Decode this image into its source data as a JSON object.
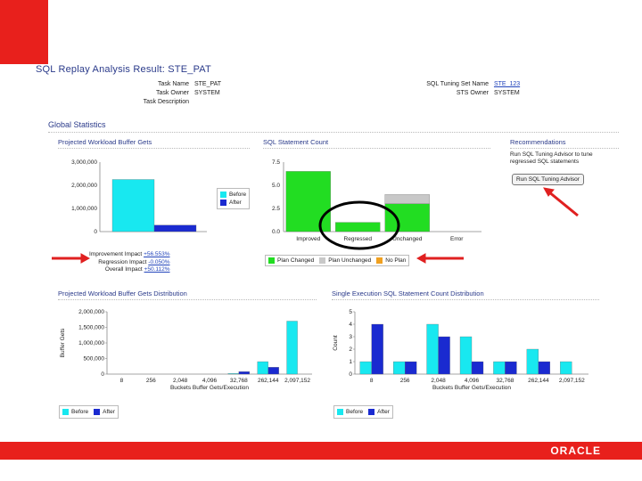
{
  "page": {
    "title": "SQL Replay Analysis Result: STE_PAT"
  },
  "task_info": {
    "task_name_label": "Task Name",
    "task_name": "STE_PAT",
    "task_owner_label": "Task Owner",
    "task_owner": "SYSTEM",
    "task_desc_label": "Task Description",
    "task_desc": "",
    "sts_label": "SQL Tuning Set Name",
    "sts_name": "STE_123",
    "sts_owner_label": "STS Owner",
    "sts_owner": "SYSTEM"
  },
  "global_stats": {
    "heading": "Global Statistics"
  },
  "colors": {
    "before": "#18e8f0",
    "after": "#1a2ad0",
    "changed": "#22dd22",
    "unchanged": "#c8c8c8",
    "noplan": "#f0a020",
    "accent": "#e8201c"
  },
  "panel1": {
    "title": "Projected Workload Buffer Gets",
    "chart_data": {
      "type": "bar",
      "categories": [
        ""
      ],
      "series": [
        {
          "name": "Before",
          "values": [
            2250000
          ]
        },
        {
          "name": "After",
          "values": [
            280000
          ]
        }
      ],
      "ylim": [
        0,
        3000000
      ],
      "yticks": [
        0,
        1000000,
        2000000,
        3000000
      ],
      "ytick_labels": [
        "0",
        "1,000,000",
        "2,000,000",
        "3,000,000"
      ]
    },
    "legend": {
      "before": "Before",
      "after": "After"
    },
    "impacts": [
      {
        "label": "Improvement Impact",
        "value": "+56.553%"
      },
      {
        "label": "Regression Impact",
        "value": "-0.050%"
      },
      {
        "label": "Overall Impact",
        "value": "+50.112%"
      }
    ]
  },
  "panel2": {
    "title": "SQL Statement Count",
    "chart_data": {
      "type": "bar",
      "stacked": true,
      "categories": [
        "Improved",
        "Regressed",
        "Unchanged",
        "Error"
      ],
      "series": [
        {
          "name": "Plan Changed",
          "values": [
            6.5,
            1,
            3,
            0
          ]
        },
        {
          "name": "Plan Unchanged",
          "values": [
            0,
            0,
            1,
            0
          ]
        },
        {
          "name": "No Plan",
          "values": [
            0,
            0,
            0,
            0
          ]
        }
      ],
      "ylim": [
        0,
        7.5
      ],
      "yticks": [
        0,
        2.5,
        5,
        7.5
      ],
      "ytick_labels": [
        "0.0",
        "2.5",
        "5.0",
        "7.5"
      ]
    },
    "legend": {
      "changed": "Plan Changed",
      "unchanged": "Plan Unchanged",
      "noplan": "No Plan"
    }
  },
  "recommendations": {
    "title": "Recommendations",
    "text": "Run SQL Tuning Advisor to tune regressed SQL statements",
    "button": "Run SQL Tuning Advisor"
  },
  "panel3": {
    "title": "Projected Workload Buffer Gets Distribution",
    "chart_data": {
      "type": "bar",
      "categories": [
        "8",
        "256",
        "2,048",
        "4,096",
        "32,768",
        "262,144",
        "2,097,152"
      ],
      "series": [
        {
          "name": "Before",
          "values": [
            0,
            0,
            0,
            0,
            20000,
            400000,
            1700000
          ]
        },
        {
          "name": "After",
          "values": [
            0,
            0,
            0,
            0,
            80000,
            220000,
            0
          ]
        }
      ],
      "ylim": [
        0,
        2000000
      ],
      "yticks": [
        0,
        500000,
        1000000,
        1500000,
        2000000
      ],
      "ytick_labels": [
        "0",
        "500,000",
        "1,000,000",
        "1,500,000",
        "2,000,000"
      ],
      "ylabel": "Buffer Gets",
      "xlabel": "Buckets   Buffer Gets/Execution"
    },
    "legend": {
      "before": "Before",
      "after": "After"
    }
  },
  "panel4": {
    "title": "Single Execution SQL Statement Count Distribution",
    "chart_data": {
      "type": "bar",
      "categories": [
        "8",
        "256",
        "2,048",
        "4,096",
        "32,768",
        "262,144",
        "2,097,152"
      ],
      "series": [
        {
          "name": "Before",
          "values": [
            1,
            1,
            4,
            3,
            1,
            2,
            1
          ]
        },
        {
          "name": "After",
          "values": [
            4,
            1,
            3,
            1,
            1,
            1,
            0
          ]
        }
      ],
      "ylim": [
        0,
        5
      ],
      "yticks": [
        0,
        1,
        2,
        3,
        4,
        5
      ],
      "ytick_labels": [
        "0",
        "1",
        "2",
        "3",
        "4",
        "5"
      ],
      "ylabel": "Count",
      "xlabel": "Buckets   Buffer Gets/Execution"
    },
    "legend": {
      "before": "Before",
      "after": "After"
    }
  },
  "footer": {
    "brand": "ORACLE"
  }
}
